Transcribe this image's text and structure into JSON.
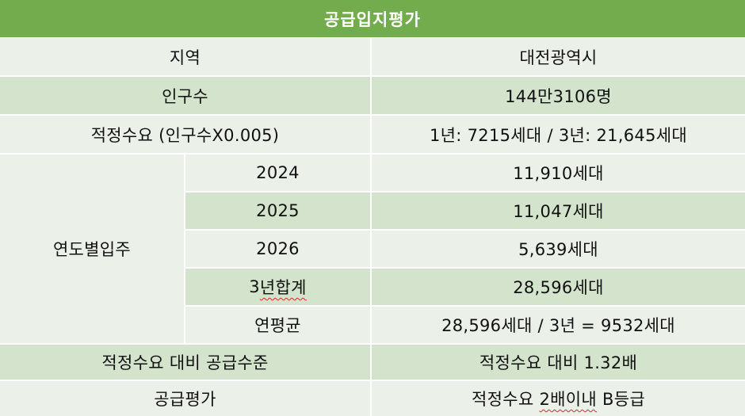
{
  "title": "공급입지평가",
  "colors": {
    "header_bg": "#72ac4d",
    "row_dark": "#d4e3cb",
    "row_light": "#ebf1e8",
    "spellcheck_underline": "#d22a2a"
  },
  "rows": [
    {
      "label": "지역",
      "value": "대전광역시"
    },
    {
      "label": "인구수",
      "value": "144만3106명"
    },
    {
      "label": "적정수요 (인구수X0.005)",
      "value": "1년: 7215세대 / 3년: 21,645세대"
    }
  ],
  "yearly": {
    "label": "연도별입주",
    "items": [
      {
        "label": "2024",
        "value": "11,910세대"
      },
      {
        "label": "2025",
        "value": "11,047세대"
      },
      {
        "label": "2026",
        "value": "5,639세대"
      },
      {
        "label_pre": "3",
        "label_mark": "년합계",
        "value": "28,596세대"
      },
      {
        "label": "연평균",
        "value": "28,596세대 / 3년 = 9532세대"
      }
    ]
  },
  "bottom_rows": [
    {
      "label": "적정수요 대비 공급수준",
      "value": "적정수요 대비 1.32배"
    },
    {
      "label": "공급평가",
      "value_pre": "적정수요 ",
      "value_mark": "2배이내",
      "value_post": " B등급"
    }
  ]
}
